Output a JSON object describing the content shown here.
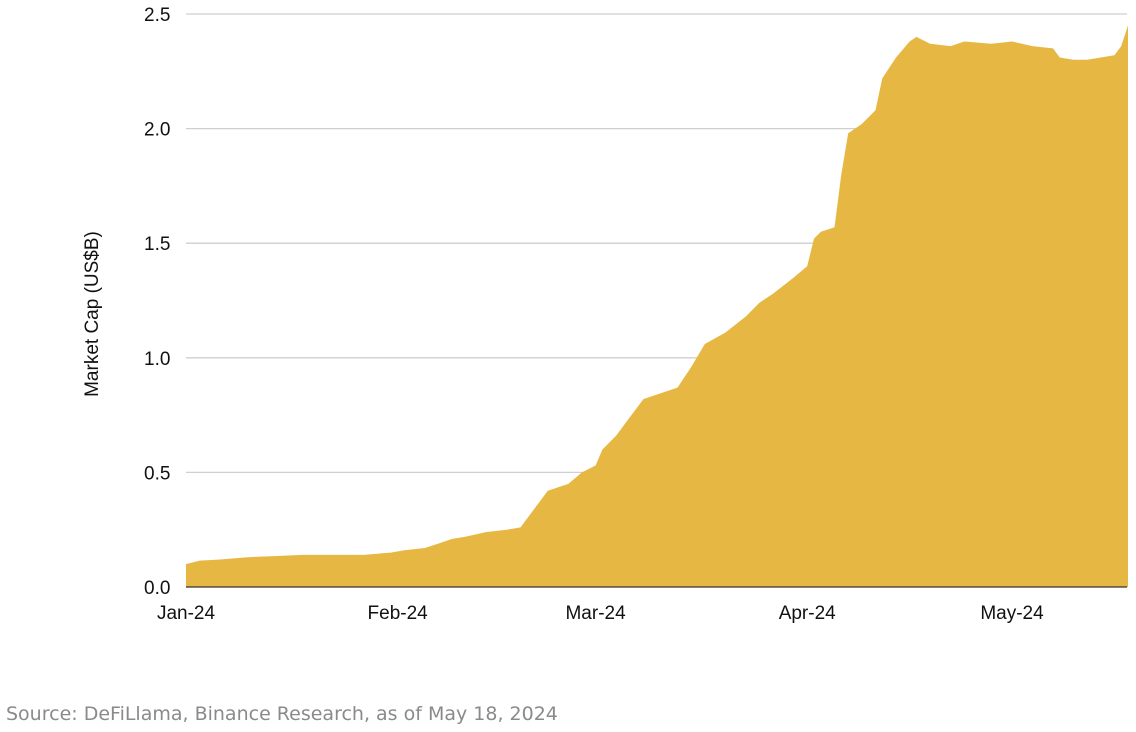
{
  "chart_data": {
    "type": "area",
    "title": "",
    "xlabel": "",
    "ylabel": "Market Cap (US$B)",
    "ylim": [
      0,
      2.5
    ],
    "yticks": [
      "0.0",
      "0.5",
      "1.0",
      "1.5",
      "2.0",
      "2.5"
    ],
    "xticks": [
      {
        "label": "Jan-24",
        "date": "2024-01-01"
      },
      {
        "label": "Feb-24",
        "date": "2024-02-01"
      },
      {
        "label": "Mar-24",
        "date": "2024-03-01"
      },
      {
        "label": "Apr-24",
        "date": "2024-04-01"
      },
      {
        "label": "May-24",
        "date": "2024-05-01"
      }
    ],
    "grid": true,
    "color": "#E6B843",
    "series": [
      {
        "points": [
          [
            "2024-01-01",
            0.1
          ],
          [
            "2024-01-03",
            0.115
          ],
          [
            "2024-01-06",
            0.12
          ],
          [
            "2024-01-10",
            0.13
          ],
          [
            "2024-01-14",
            0.135
          ],
          [
            "2024-01-18",
            0.14
          ],
          [
            "2024-01-22",
            0.14
          ],
          [
            "2024-01-27",
            0.14
          ],
          [
            "2024-01-31",
            0.15
          ],
          [
            "2024-02-02",
            0.16
          ],
          [
            "2024-02-05",
            0.17
          ],
          [
            "2024-02-07",
            0.19
          ],
          [
            "2024-02-09",
            0.21
          ],
          [
            "2024-02-11",
            0.22
          ],
          [
            "2024-02-14",
            0.24
          ],
          [
            "2024-02-17",
            0.25
          ],
          [
            "2024-02-19",
            0.26
          ],
          [
            "2024-02-21",
            0.34
          ],
          [
            "2024-02-23",
            0.42
          ],
          [
            "2024-02-26",
            0.45
          ],
          [
            "2024-02-28",
            0.5
          ],
          [
            "2024-03-01",
            0.53
          ],
          [
            "2024-03-02",
            0.6
          ],
          [
            "2024-03-04",
            0.66
          ],
          [
            "2024-03-06",
            0.74
          ],
          [
            "2024-03-08",
            0.82
          ],
          [
            "2024-03-10",
            0.84
          ],
          [
            "2024-03-13",
            0.87
          ],
          [
            "2024-03-15",
            0.96
          ],
          [
            "2024-03-17",
            1.06
          ],
          [
            "2024-03-20",
            1.11
          ],
          [
            "2024-03-23",
            1.18
          ],
          [
            "2024-03-25",
            1.24
          ],
          [
            "2024-03-27",
            1.28
          ],
          [
            "2024-03-30",
            1.35
          ],
          [
            "2024-04-01",
            1.4
          ],
          [
            "2024-04-02",
            1.52
          ],
          [
            "2024-04-03",
            1.55
          ],
          [
            "2024-04-05",
            1.57
          ],
          [
            "2024-04-06",
            1.8
          ],
          [
            "2024-04-07",
            1.98
          ],
          [
            "2024-04-09",
            2.02
          ],
          [
            "2024-04-11",
            2.08
          ],
          [
            "2024-04-12",
            2.22
          ],
          [
            "2024-04-14",
            2.31
          ],
          [
            "2024-04-16",
            2.38
          ],
          [
            "2024-04-17",
            2.4
          ],
          [
            "2024-04-19",
            2.37
          ],
          [
            "2024-04-22",
            2.36
          ],
          [
            "2024-04-24",
            2.38
          ],
          [
            "2024-04-28",
            2.37
          ],
          [
            "2024-05-01",
            2.38
          ],
          [
            "2024-05-04",
            2.36
          ],
          [
            "2024-05-07",
            2.35
          ],
          [
            "2024-05-08",
            2.31
          ],
          [
            "2024-05-10",
            2.3
          ],
          [
            "2024-05-12",
            2.3
          ],
          [
            "2024-05-14",
            2.31
          ],
          [
            "2024-05-16",
            2.32
          ],
          [
            "2024-05-17",
            2.36
          ],
          [
            "2024-05-18",
            2.45
          ]
        ]
      }
    ]
  },
  "source_note": "Source: DeFiLlama, Binance Research, as of May 18, 2024"
}
